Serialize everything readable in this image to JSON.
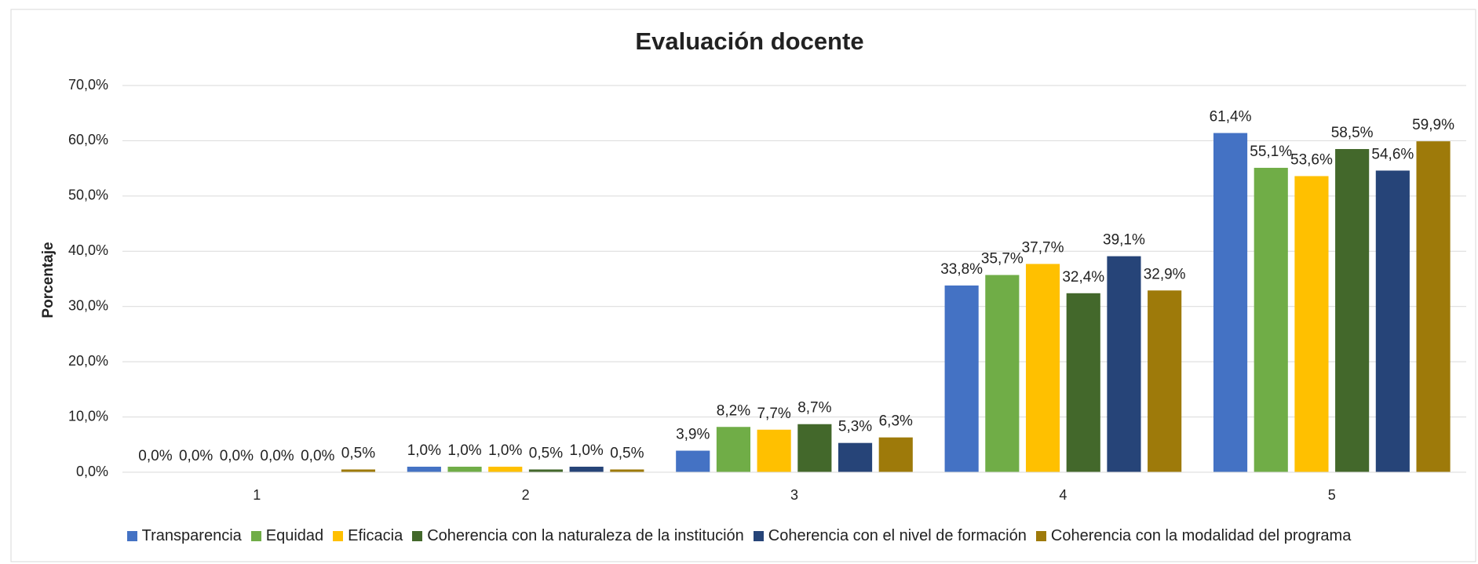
{
  "chart_data": {
    "type": "bar",
    "title": "Evaluación docente",
    "y_label": "Porcentaje",
    "categories": [
      "1",
      "2",
      "3",
      "4",
      "5"
    ],
    "series": [
      {
        "name": "Transparencia",
        "color": "#4472c4",
        "values": [
          0.0,
          1.0,
          3.9,
          33.8,
          61.4
        ],
        "value_labels": [
          "0,0%",
          "1,0%",
          "3,9%",
          "33,8%",
          "61,4%"
        ]
      },
      {
        "name": "Equidad",
        "color": "#70ad47",
        "values": [
          0.0,
          1.0,
          8.2,
          35.7,
          55.1
        ],
        "value_labels": [
          "0,0%",
          "1,0%",
          "8,2%",
          "35,7%",
          "55,1%"
        ]
      },
      {
        "name": "Eficacia",
        "color": "#ffc000",
        "values": [
          0.0,
          1.0,
          7.7,
          37.7,
          53.6
        ],
        "value_labels": [
          "0,0%",
          "1,0%",
          "7,7%",
          "37,7%",
          "53,6%"
        ]
      },
      {
        "name": "Coherencia con la naturaleza de la institución",
        "color": "#43682b",
        "values": [
          0.0,
          0.5,
          8.7,
          32.4,
          58.5
        ],
        "value_labels": [
          "0,0%",
          "0,5%",
          "8,7%",
          "32,4%",
          "58,5%"
        ]
      },
      {
        "name": "Coherencia con el nivel de formación",
        "color": "#264478",
        "values": [
          0.0,
          1.0,
          5.3,
          39.1,
          54.6
        ],
        "value_labels": [
          "0,0%",
          "1,0%",
          "5,3%",
          "39,1%",
          "54,6%"
        ]
      },
      {
        "name": "Coherencia con la modalidad del programa",
        "color": "#9e7a0a",
        "values": [
          0.5,
          0.5,
          6.3,
          32.9,
          59.9
        ],
        "value_labels": [
          "0,5%",
          "0,5%",
          "6,3%",
          "32,9%",
          "59,9%"
        ]
      }
    ],
    "ylim": [
      0,
      70
    ],
    "yticks": [
      {
        "value": 0,
        "label": "0,0%"
      },
      {
        "value": 10,
        "label": "10,0%"
      },
      {
        "value": 20,
        "label": "20,0%"
      },
      {
        "value": 30,
        "label": "30,0%"
      },
      {
        "value": 40,
        "label": "40,0%"
      },
      {
        "value": 50,
        "label": "50,0%"
      },
      {
        "value": 60,
        "label": "60,0%"
      },
      {
        "value": 70,
        "label": "70,0%"
      }
    ],
    "grid": true,
    "legend": "bottom"
  }
}
